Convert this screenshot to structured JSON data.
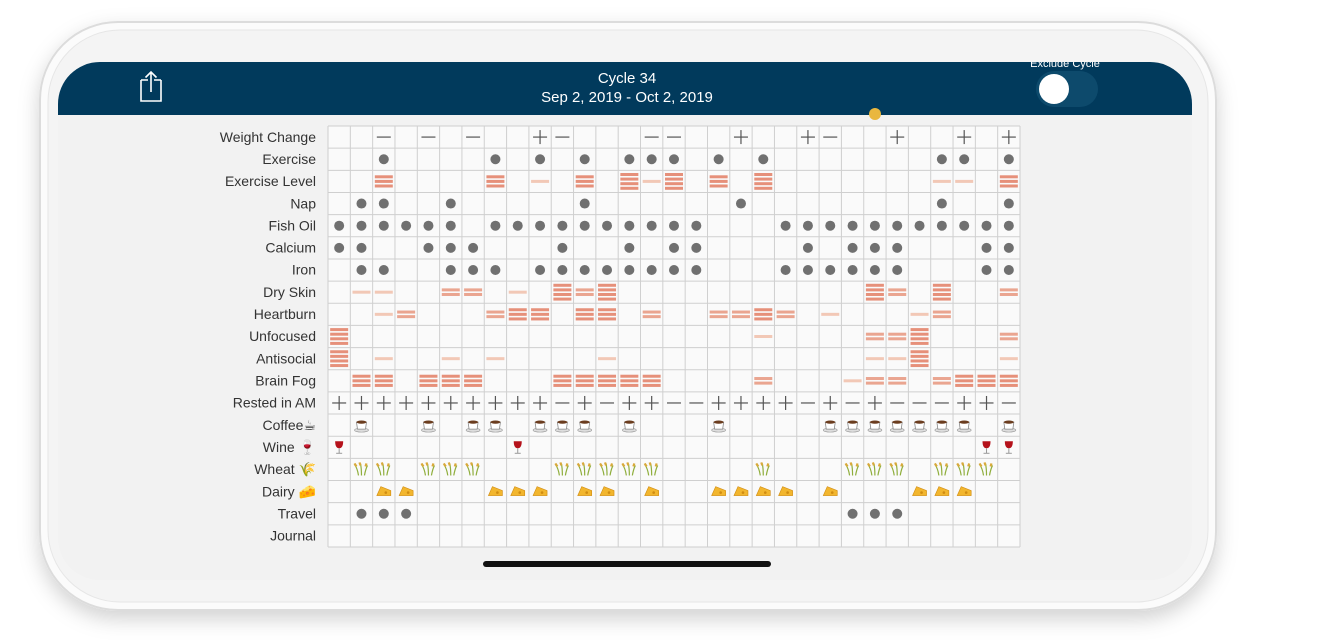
{
  "header": {
    "title": "Cycle 34",
    "subtitle": "Sep 2, 2019 - Oct 2, 2019",
    "toggle_label": "Exclude Cycle"
  },
  "grid": {
    "rows": [
      {
        "label": "Weight Change",
        "mark": "sign",
        "cells": [
          null,
          null,
          -1,
          null,
          -1,
          null,
          -1,
          null,
          null,
          1,
          -1,
          null,
          null,
          null,
          -1,
          -1,
          null,
          null,
          1,
          null,
          null,
          1,
          -1,
          null,
          null,
          1,
          null,
          null,
          1,
          null,
          1
        ]
      },
      {
        "label": "Exercise",
        "mark": "dot",
        "cells": [
          null,
          null,
          1,
          null,
          null,
          null,
          null,
          1,
          null,
          1,
          null,
          1,
          null,
          1,
          1,
          1,
          null,
          1,
          null,
          1,
          null,
          null,
          null,
          null,
          null,
          null,
          null,
          1,
          1,
          null,
          1
        ]
      },
      {
        "label": "Exercise Level",
        "mark": "bars",
        "cells": [
          null,
          null,
          3,
          null,
          null,
          null,
          null,
          3,
          null,
          1,
          null,
          3,
          null,
          4,
          1,
          4,
          null,
          3,
          null,
          4,
          null,
          null,
          null,
          null,
          null,
          null,
          null,
          1,
          1,
          null,
          3
        ]
      },
      {
        "label": "Nap",
        "mark": "dot",
        "cells": [
          null,
          1,
          1,
          null,
          null,
          1,
          null,
          null,
          null,
          null,
          null,
          1,
          null,
          null,
          null,
          null,
          null,
          null,
          1,
          null,
          null,
          null,
          null,
          null,
          null,
          null,
          null,
          1,
          null,
          null,
          1
        ]
      },
      {
        "label": "Fish Oil",
        "mark": "dot",
        "cells": [
          1,
          1,
          1,
          1,
          1,
          1,
          null,
          1,
          1,
          1,
          1,
          1,
          1,
          1,
          1,
          1,
          1,
          null,
          null,
          null,
          1,
          1,
          1,
          1,
          1,
          1,
          1,
          1,
          1,
          1,
          1
        ]
      },
      {
        "label": "Calcium",
        "mark": "dot",
        "cells": [
          1,
          1,
          null,
          null,
          1,
          1,
          1,
          null,
          null,
          null,
          1,
          null,
          null,
          1,
          null,
          1,
          1,
          null,
          null,
          null,
          null,
          1,
          null,
          1,
          1,
          1,
          null,
          null,
          null,
          1,
          1
        ]
      },
      {
        "label": "Iron",
        "mark": "dot",
        "cells": [
          null,
          1,
          1,
          null,
          null,
          1,
          1,
          1,
          null,
          1,
          1,
          1,
          1,
          1,
          1,
          1,
          1,
          null,
          null,
          null,
          1,
          1,
          1,
          1,
          1,
          1,
          null,
          null,
          null,
          1,
          1
        ]
      },
      {
        "label": "Dry Skin",
        "mark": "bars",
        "cells": [
          null,
          1,
          1,
          null,
          null,
          2,
          2,
          null,
          1,
          null,
          4,
          2,
          4,
          null,
          null,
          null,
          null,
          null,
          null,
          null,
          null,
          null,
          null,
          null,
          4,
          2,
          null,
          4,
          null,
          null,
          2
        ]
      },
      {
        "label": "Heartburn",
        "mark": "bars",
        "cells": [
          null,
          null,
          1,
          2,
          null,
          null,
          null,
          2,
          3,
          3,
          null,
          3,
          3,
          null,
          2,
          null,
          null,
          2,
          2,
          3,
          2,
          null,
          1,
          null,
          null,
          null,
          1,
          2,
          null,
          null,
          null
        ]
      },
      {
        "label": "Unfocused",
        "mark": "bars",
        "cells": [
          4,
          null,
          null,
          null,
          null,
          null,
          null,
          null,
          null,
          null,
          null,
          null,
          null,
          null,
          null,
          null,
          null,
          null,
          null,
          1,
          null,
          null,
          null,
          null,
          2,
          2,
          4,
          null,
          null,
          null,
          2
        ]
      },
      {
        "label": "Antisocial",
        "mark": "bars",
        "cells": [
          4,
          null,
          1,
          null,
          null,
          1,
          null,
          1,
          null,
          null,
          null,
          null,
          1,
          null,
          null,
          null,
          null,
          null,
          null,
          null,
          null,
          null,
          null,
          null,
          1,
          1,
          4,
          null,
          null,
          null,
          1
        ]
      },
      {
        "label": "Brain Fog",
        "mark": "bars",
        "cells": [
          null,
          3,
          3,
          null,
          3,
          3,
          3,
          null,
          null,
          null,
          3,
          3,
          3,
          3,
          3,
          null,
          null,
          null,
          null,
          2,
          null,
          null,
          null,
          1,
          2,
          2,
          null,
          2,
          3,
          3,
          3
        ]
      },
      {
        "label": "Rested in AM",
        "mark": "sign",
        "cells": [
          1,
          1,
          1,
          1,
          1,
          1,
          1,
          1,
          1,
          1,
          -1,
          1,
          -1,
          1,
          1,
          -1,
          -1,
          1,
          1,
          1,
          1,
          -1,
          1,
          -1,
          1,
          -1,
          -1,
          -1,
          1,
          1,
          -1
        ]
      },
      {
        "label": "Coffee☕",
        "mark": "coffee",
        "cells": [
          null,
          1,
          null,
          null,
          1,
          null,
          1,
          1,
          null,
          1,
          1,
          1,
          null,
          1,
          null,
          null,
          null,
          1,
          null,
          null,
          null,
          null,
          1,
          1,
          1,
          1,
          1,
          1,
          1,
          null,
          1
        ]
      },
      {
        "label": "Wine 🍷",
        "mark": "wine",
        "cells": [
          1,
          null,
          null,
          null,
          null,
          null,
          null,
          null,
          1,
          null,
          null,
          null,
          null,
          null,
          null,
          null,
          null,
          null,
          null,
          null,
          null,
          null,
          null,
          null,
          null,
          null,
          null,
          null,
          null,
          1,
          1
        ]
      },
      {
        "label": "Wheat 🌾",
        "mark": "wheat",
        "cells": [
          null,
          1,
          1,
          null,
          1,
          1,
          1,
          null,
          null,
          null,
          1,
          1,
          1,
          1,
          1,
          null,
          null,
          null,
          null,
          1,
          null,
          null,
          null,
          1,
          1,
          1,
          null,
          1,
          1,
          1,
          null
        ]
      },
      {
        "label": "Dairy 🧀",
        "mark": "dairy",
        "cells": [
          null,
          null,
          1,
          1,
          null,
          null,
          null,
          1,
          1,
          1,
          null,
          1,
          1,
          null,
          1,
          null,
          null,
          1,
          1,
          1,
          1,
          null,
          1,
          null,
          null,
          null,
          1,
          1,
          1,
          null,
          null
        ]
      },
      {
        "label": "Travel",
        "mark": "dot",
        "cells": [
          null,
          1,
          1,
          1,
          null,
          null,
          null,
          null,
          null,
          null,
          null,
          null,
          null,
          null,
          null,
          null,
          null,
          null,
          null,
          null,
          null,
          null,
          null,
          1,
          1,
          1,
          null,
          null,
          null,
          null,
          null
        ]
      },
      {
        "label": "Journal",
        "mark": "dot",
        "cells": [
          null,
          null,
          null,
          null,
          null,
          null,
          null,
          null,
          null,
          null,
          null,
          null,
          null,
          null,
          null,
          null,
          null,
          null,
          null,
          null,
          null,
          null,
          null,
          null,
          null,
          null,
          null,
          null,
          null,
          null,
          null
        ]
      }
    ]
  }
}
